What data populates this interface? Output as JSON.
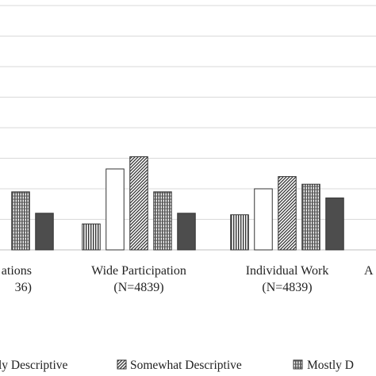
{
  "chart_data": {
    "type": "bar",
    "grid": true,
    "legend_position": "bottom",
    "ylim": [
      0,
      0.8
    ],
    "categories": [
      {
        "line1": "ations",
        "line2": "36)"
      },
      {
        "line1": "Wide Participation",
        "line2": "(N=4839)"
      },
      {
        "line1": "Individual Work",
        "line2": "(N=4839)"
      },
      {
        "line1": "A",
        "line2": ""
      }
    ],
    "series": [
      {
        "name": "",
        "pattern": "vertical-lines",
        "values": [
          null,
          0.085,
          0.115,
          null
        ]
      },
      {
        "name": "",
        "pattern": "solid-white",
        "values": [
          null,
          0.265,
          0.2,
          null
        ]
      },
      {
        "name": "Somewhat Descriptive",
        "pattern": "diagonal-lines",
        "values": [
          null,
          0.305,
          0.24,
          null
        ]
      },
      {
        "name": "Mostly Descriptive",
        "pattern": "grid",
        "values": [
          0.19,
          0.19,
          0.215,
          null
        ]
      },
      {
        "name": "",
        "pattern": "solid-gray",
        "values": [
          0.12,
          0.12,
          0.17,
          null
        ]
      }
    ],
    "legend": [
      {
        "label": "ly Descriptive",
        "pattern": "diagonal-lines"
      },
      {
        "label": "Somewhat Descriptive",
        "pattern": "diagonal-lines"
      },
      {
        "label": "Mostly D",
        "pattern": "grid"
      }
    ],
    "colors": {
      "bar_stroke": "#333333",
      "gridline": "#d9d9d9",
      "baseline": "#bfbfbf",
      "solid_gray": "#4d4d4d"
    }
  }
}
